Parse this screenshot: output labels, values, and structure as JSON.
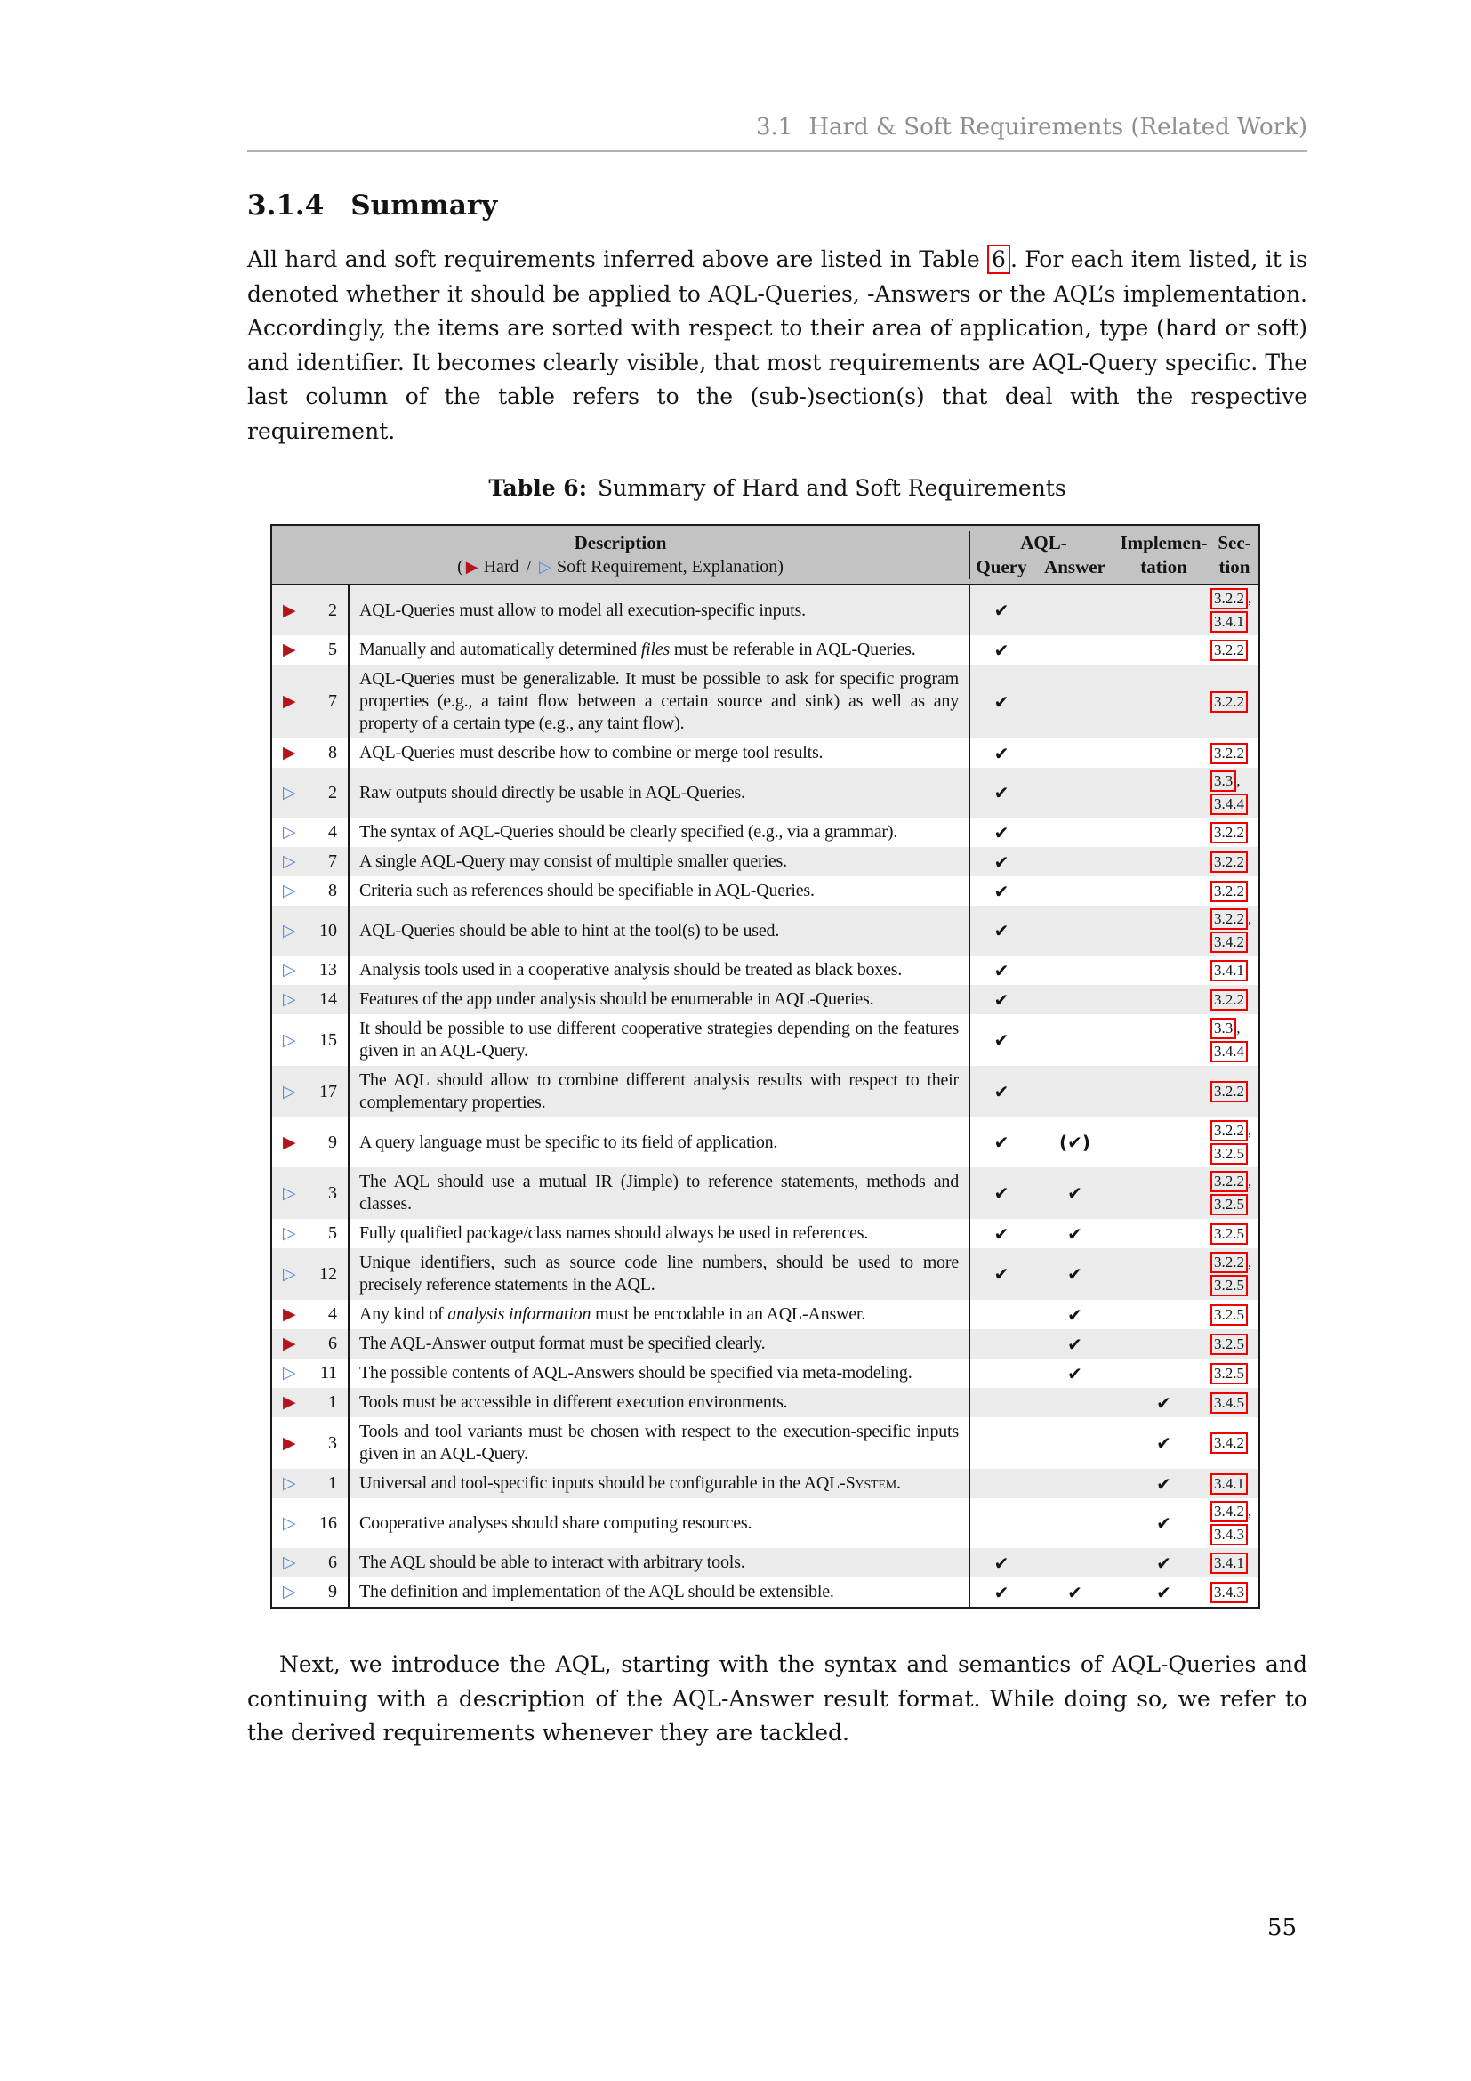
{
  "page": {
    "running_header": {
      "number": "3.1",
      "title": "Hard & Soft Requirements (Related Work)"
    },
    "page_number": "55"
  },
  "section": {
    "number": "3.1.4",
    "title": "Summary"
  },
  "intro": {
    "before": "All hard and soft requirements inferred above are listed in Table ",
    "link": "6",
    "after": ". For each item listed, it is denoted whether it should be applied to AQL-Queries, -Answers or the AQL’s implementation. Accordingly, the items are sorted with respect to their area of application, type (hard or soft) and identifier. It becomes clearly visible, that most requirements are AQL-Query specific. The last column of the table refers to the (sub-)section(s) that deal with the respective requirement."
  },
  "caption": {
    "label": "Table 6:",
    "text": "Summary of Hard and Soft Requirements"
  },
  "table": {
    "icons": {
      "hard": "▶",
      "soft": "▷"
    },
    "header": {
      "description": "Description",
      "legend": {
        "open": "(",
        "hard": "Hard",
        "separator": "/",
        "soft": "Soft Requirement, Explanation",
        "close": ")"
      },
      "aql": "AQL-",
      "query": "Query",
      "answer": "Answer",
      "implementation_1": "Implemen-",
      "implementation_2": "tation",
      "section_1": "Sec-",
      "section_2": "tion"
    },
    "rows": [
      {
        "type": "hard",
        "id": "2",
        "desc": "AQL-Queries must allow to model all execution-specific inputs.",
        "query": "✔",
        "answer": "",
        "impl": "",
        "sections": [
          "3.2.2",
          "3.4.1"
        ]
      },
      {
        "type": "hard",
        "id": "5",
        "desc": [
          "Manually and automatically determined ",
          {
            "i": "files"
          },
          " must be referable in AQL-Queries."
        ],
        "query": "✔",
        "answer": "",
        "impl": "",
        "sections": [
          "3.2.2"
        ]
      },
      {
        "type": "hard",
        "id": "7",
        "desc": "AQL-Queries must be generalizable.  It must be possible to ask for specific program properties (e.g., a taint flow between a certain source and sink) as well as any property of a certain type (e.g., any taint flow).",
        "query": "✔",
        "answer": "",
        "impl": "",
        "sections": [
          "3.2.2"
        ]
      },
      {
        "type": "hard",
        "id": "8",
        "desc": "AQL-Queries must describe how to combine or merge tool results.",
        "query": "✔",
        "answer": "",
        "impl": "",
        "sections": [
          "3.2.2"
        ]
      },
      {
        "type": "soft",
        "id": "2",
        "desc": "Raw outputs should directly be usable in AQL-Queries.",
        "query": "✔",
        "answer": "",
        "impl": "",
        "sections": [
          "3.3",
          "3.4.4"
        ]
      },
      {
        "type": "soft",
        "id": "4",
        "desc": "The syntax of AQL-Queries should be clearly specified (e.g., via a grammar).",
        "query": "✔",
        "answer": "",
        "impl": "",
        "sections": [
          "3.2.2"
        ]
      },
      {
        "type": "soft",
        "id": "7",
        "desc": "A single AQL-Query may consist of multiple smaller queries.",
        "query": "✔",
        "answer": "",
        "impl": "",
        "sections": [
          "3.2.2"
        ]
      },
      {
        "type": "soft",
        "id": "8",
        "desc": "Criteria such as references should be specifiable in AQL-Queries.",
        "query": "✔",
        "answer": "",
        "impl": "",
        "sections": [
          "3.2.2"
        ]
      },
      {
        "type": "soft",
        "id": "10",
        "desc": "AQL-Queries should be able to hint at the tool(s) to be used.",
        "query": "✔",
        "answer": "",
        "impl": "",
        "sections": [
          "3.2.2",
          "3.4.2"
        ]
      },
      {
        "type": "soft",
        "id": "13",
        "desc": "Analysis tools used in a cooperative analysis should be treated as black boxes.",
        "query": "✔",
        "answer": "",
        "impl": "",
        "sections": [
          "3.4.1"
        ]
      },
      {
        "type": "soft",
        "id": "14",
        "desc": "Features of the app under analysis should be enumerable in AQL-Queries.",
        "query": "✔",
        "answer": "",
        "impl": "",
        "sections": [
          "3.2.2"
        ]
      },
      {
        "type": "soft",
        "id": "15",
        "desc": "It should be possible to use different cooperative strategies depending on the features given in an AQL-Query.",
        "query": "✔",
        "answer": "",
        "impl": "",
        "sections": [
          "3.3",
          "3.4.4"
        ]
      },
      {
        "type": "soft",
        "id": "17",
        "desc": "The AQL should allow to combine different analysis results with respect to their complementary properties.",
        "query": "✔",
        "answer": "",
        "impl": "",
        "sections": [
          "3.2.2"
        ]
      },
      {
        "type": "hard",
        "id": "9",
        "desc": "A query language must be specific to its field of application.",
        "query": "✔",
        "answer": "(✔)",
        "impl": "",
        "sections": [
          "3.2.2",
          "3.2.5"
        ]
      },
      {
        "type": "soft",
        "id": "3",
        "desc": "The AQL should use a mutual IR (Jimple) to reference statements, methods and classes.",
        "query": "✔",
        "answer": "✔",
        "impl": "",
        "sections": [
          "3.2.2",
          "3.2.5"
        ]
      },
      {
        "type": "soft",
        "id": "5",
        "desc": "Fully qualified package/class names should always be used in references.",
        "query": "✔",
        "answer": "✔",
        "impl": "",
        "sections": [
          "3.2.5"
        ]
      },
      {
        "type": "soft",
        "id": "12",
        "desc": "Unique identifiers, such as source code line numbers, should be used to more precisely reference statements in the AQL.",
        "query": "✔",
        "answer": "✔",
        "impl": "",
        "sections": [
          "3.2.2",
          "3.2.5"
        ]
      },
      {
        "type": "hard",
        "id": "4",
        "desc": [
          "Any kind of ",
          {
            "i": "analysis information"
          },
          " must be encodable in an AQL-Answer."
        ],
        "query": "",
        "answer": "✔",
        "impl": "",
        "sections": [
          "3.2.5"
        ]
      },
      {
        "type": "hard",
        "id": "6",
        "desc": "The AQL-Answer output format must be specified clearly.",
        "query": "",
        "answer": "✔",
        "impl": "",
        "sections": [
          "3.2.5"
        ]
      },
      {
        "type": "soft",
        "id": "11",
        "desc": "The possible contents of AQL-Answers should be specified via meta-modeling.",
        "query": "",
        "answer": "✔",
        "impl": "",
        "sections": [
          "3.2.5"
        ]
      },
      {
        "type": "hard",
        "id": "1",
        "desc": "Tools must be accessible in different execution environments.",
        "query": "",
        "answer": "",
        "impl": "✔",
        "sections": [
          "3.4.5"
        ]
      },
      {
        "type": "hard",
        "id": "3",
        "desc": "Tools and tool variants must be chosen with respect to the execution-specific inputs given in an AQL-Query.",
        "query": "",
        "answer": "",
        "impl": "✔",
        "sections": [
          "3.4.2"
        ]
      },
      {
        "type": "soft",
        "id": "1",
        "desc": [
          "Universal and tool-specific inputs should be configurable in the AQL-",
          {
            "sc": "System"
          },
          "."
        ],
        "query": "",
        "answer": "",
        "impl": "✔",
        "sections": [
          "3.4.1"
        ]
      },
      {
        "type": "soft",
        "id": "16",
        "desc": "Cooperative analyses should share computing resources.",
        "query": "",
        "answer": "",
        "impl": "✔",
        "sections": [
          "3.4.2",
          "3.4.3"
        ]
      },
      {
        "type": "soft",
        "id": "6",
        "desc": "The AQL should be able to interact with arbitrary tools.",
        "query": "✔",
        "answer": "",
        "impl": "✔",
        "sections": [
          "3.4.1"
        ]
      },
      {
        "type": "soft",
        "id": "9",
        "desc": "The definition and implementation of the AQL should be extensible.",
        "query": "✔",
        "answer": "✔",
        "impl": "✔",
        "sections": [
          "3.4.3"
        ]
      }
    ]
  },
  "closing": "Next, we introduce the AQL, starting with the syntax and semantics of AQL-Queries and continuing with a description of the AQL-Answer result format. While doing so, we refer to the derived requirements whenever they are tackled.",
  "colors": {
    "hard_marker": "#b3151d",
    "soft_marker": "#5585db",
    "link_box": "#ee0000",
    "table_header_bg": "#c3c3c3",
    "row_alt_bg": "#ebebeb"
  }
}
